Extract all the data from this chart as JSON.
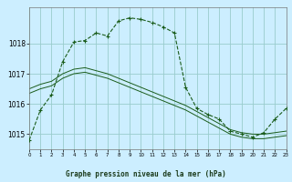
{
  "title": "Graphe pression niveau de la mer (hPa)",
  "background_color": "#cceeff",
  "grid_color": "#99cccc",
  "line_color": "#1a5c1a",
  "xlim": [
    0,
    23
  ],
  "ylim": [
    1014.5,
    1019.2
  ],
  "yticks": [
    1015,
    1016,
    1017,
    1018
  ],
  "xticks": [
    0,
    1,
    2,
    3,
    4,
    5,
    6,
    7,
    8,
    9,
    10,
    11,
    12,
    13,
    14,
    15,
    16,
    17,
    18,
    19,
    20,
    21,
    22,
    23
  ],
  "series_dashed": {
    "x": [
      0,
      1,
      2,
      3,
      4,
      5,
      6,
      7,
      8,
      9,
      10,
      11,
      12,
      13,
      14,
      15,
      16,
      17,
      18,
      19,
      20,
      21,
      22,
      23
    ],
    "y": [
      1014.8,
      1015.8,
      1016.3,
      1017.4,
      1018.05,
      1018.1,
      1018.35,
      1018.25,
      1018.75,
      1018.85,
      1018.8,
      1018.7,
      1018.55,
      1018.35,
      1016.55,
      1015.85,
      1015.65,
      1015.5,
      1015.1,
      1015.0,
      1014.9,
      1015.05,
      1015.5,
      1015.85
    ]
  },
  "series_solid1": {
    "x": [
      0,
      1,
      2,
      3,
      4,
      5,
      6,
      7,
      8,
      9,
      10,
      11,
      12,
      13,
      14,
      15,
      16,
      17,
      18,
      19,
      20,
      21,
      22,
      23
    ],
    "y": [
      1016.5,
      1016.65,
      1016.75,
      1017.0,
      1017.15,
      1017.2,
      1017.1,
      1017.0,
      1016.85,
      1016.7,
      1016.55,
      1016.4,
      1016.25,
      1016.1,
      1015.95,
      1015.75,
      1015.55,
      1015.35,
      1015.15,
      1015.05,
      1015.0,
      1015.0,
      1015.05,
      1015.1
    ]
  },
  "series_solid2": {
    "x": [
      0,
      1,
      2,
      3,
      4,
      5,
      6,
      7,
      8,
      9,
      10,
      11,
      12,
      13,
      14,
      15,
      16,
      17,
      18,
      19,
      20,
      21,
      22,
      23
    ],
    "y": [
      1016.35,
      1016.5,
      1016.6,
      1016.85,
      1017.0,
      1017.05,
      1016.95,
      1016.85,
      1016.7,
      1016.55,
      1016.4,
      1016.25,
      1016.1,
      1015.95,
      1015.8,
      1015.6,
      1015.4,
      1015.2,
      1015.0,
      1014.9,
      1014.85,
      1014.85,
      1014.9,
      1014.95
    ]
  }
}
